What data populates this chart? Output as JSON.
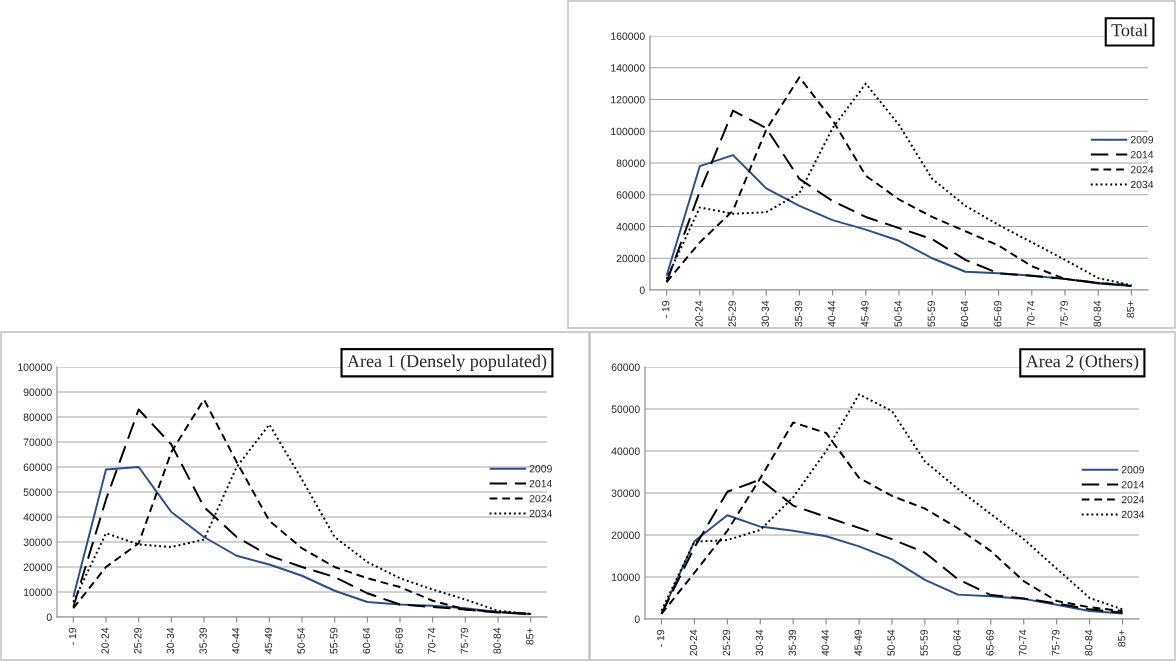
{
  "chart_data": [
    {
      "type": "line",
      "title": "Total",
      "categories": [
        "- 19",
        "20-24",
        "25-29",
        "30-34",
        "35-39",
        "40-44",
        "45-49",
        "50-54",
        "55-59",
        "60-64",
        "65-69",
        "70-74",
        "75-79",
        "80-84",
        "85+"
      ],
      "ylim": [
        0,
        160000
      ],
      "yticks": [
        0,
        20000,
        40000,
        60000,
        80000,
        100000,
        120000,
        140000,
        160000
      ],
      "grid": "y",
      "legend": "right",
      "series": [
        {
          "name": "2009",
          "color": "#2a4f86",
          "line_style": "solid",
          "values": [
            9000,
            78000,
            85000,
            64000,
            53000,
            44000,
            38000,
            31000,
            20000,
            11500,
            10500,
            9000,
            7000,
            4000,
            2500
          ]
        },
        {
          "name": "2014",
          "color": "#000000",
          "line_style": "long dashed",
          "values": [
            5000,
            62000,
            113000,
            102000,
            70000,
            56000,
            46000,
            39000,
            32000,
            19000,
            10500,
            9000,
            7000,
            4500,
            2500
          ]
        },
        {
          "name": "2024",
          "color": "#000000",
          "line_style": "dashed",
          "values": [
            5000,
            30000,
            50000,
            101000,
            134000,
            107000,
            72000,
            57000,
            46000,
            37000,
            28000,
            15000,
            7000,
            4500,
            3000
          ]
        },
        {
          "name": "2034",
          "color": "#000000",
          "line_style": "dotted",
          "values": [
            7000,
            52000,
            48000,
            49000,
            61000,
            102000,
            130000,
            104000,
            70000,
            53000,
            41000,
            30000,
            19000,
            7500,
            3000
          ]
        }
      ]
    },
    {
      "type": "line",
      "title": "Area 1 (Densely populated)",
      "categories": [
        "- 19",
        "20-24",
        "25-29",
        "30-34",
        "35-39",
        "40-44",
        "45-49",
        "50-54",
        "55-59",
        "60-64",
        "65-69",
        "70-74",
        "75-79",
        "80-84",
        "85+"
      ],
      "ylim": [
        0,
        100000
      ],
      "yticks": [
        0,
        10000,
        20000,
        30000,
        40000,
        50000,
        60000,
        70000,
        80000,
        90000,
        100000
      ],
      "grid": "y",
      "legend": "right",
      "series": [
        {
          "name": "2009",
          "color": "#2a4f86",
          "line_style": "solid",
          "values": [
            8000,
            59000,
            60000,
            42000,
            32000,
            24500,
            21000,
            16500,
            10500,
            6000,
            5000,
            4500,
            3500,
            2000,
            1200
          ]
        },
        {
          "name": "2014",
          "color": "#000000",
          "line_style": "long dashed",
          "values": [
            4000,
            47000,
            83000,
            69000,
            44000,
            32000,
            24500,
            20000,
            16000,
            9500,
            5000,
            4000,
            3000,
            1800,
            1200
          ]
        },
        {
          "name": "2024",
          "color": "#000000",
          "line_style": "dashed",
          "values": [
            3500,
            20000,
            29500,
            66000,
            87000,
            62000,
            38500,
            27500,
            20000,
            15500,
            12000,
            6500,
            3000,
            2000,
            1200
          ]
        },
        {
          "name": "2034",
          "color": "#000000",
          "line_style": "dotted",
          "values": [
            6000,
            33500,
            29000,
            28000,
            31000,
            60000,
            77000,
            55000,
            32000,
            22000,
            15500,
            11000,
            7000,
            2500,
            1200
          ]
        }
      ]
    },
    {
      "type": "line",
      "title": "Area 2 (Others)",
      "categories": [
        "- 19",
        "20-24",
        "25-29",
        "30-34",
        "35-39",
        "40-44",
        "45-49",
        "50-54",
        "55-59",
        "60-64",
        "65-69",
        "70-74",
        "75-79",
        "80-84",
        "85+"
      ],
      "ylim": [
        0,
        60000
      ],
      "yticks": [
        0,
        10000,
        20000,
        30000,
        40000,
        50000,
        60000
      ],
      "grid": "y",
      "legend": "right",
      "series": [
        {
          "name": "2009",
          "color": "#2a4f86",
          "line_style": "solid",
          "values": [
            1200,
            18500,
            24700,
            22000,
            21000,
            19700,
            17300,
            14200,
            9300,
            5800,
            5400,
            4800,
            3400,
            1900,
            1300
          ]
        },
        {
          "name": "2014",
          "color": "#000000",
          "line_style": "long dashed",
          "values": [
            1200,
            17000,
            30300,
            33200,
            27000,
            24300,
            21700,
            19000,
            15800,
            9500,
            5700,
            4900,
            3700,
            2300,
            1500
          ]
        },
        {
          "name": "2024",
          "color": "#000000",
          "line_style": "dashed",
          "values": [
            1200,
            11000,
            21000,
            33500,
            46800,
            44300,
            33600,
            29300,
            26300,
            21600,
            16200,
            9000,
            4300,
            2800,
            1900
          ]
        },
        {
          "name": "2034",
          "color": "#000000",
          "line_style": "dotted",
          "values": [
            2000,
            18400,
            18800,
            21200,
            29000,
            40000,
            53500,
            49500,
            37500,
            31000,
            25000,
            19000,
            12000,
            5000,
            2300
          ]
        }
      ]
    }
  ]
}
